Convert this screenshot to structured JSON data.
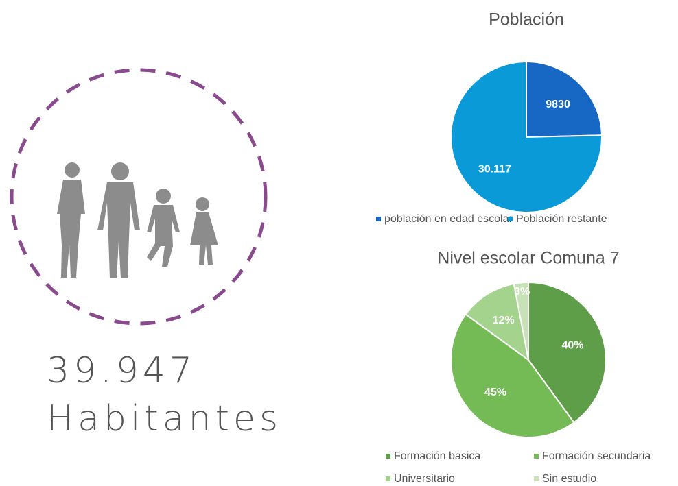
{
  "headline": {
    "number": "39.947",
    "label": "Habitantes"
  },
  "chart_data": [
    {
      "type": "pie",
      "title": "Población",
      "categories": [
        "población en edad escolar",
        "Población restante"
      ],
      "values": [
        9830,
        30117
      ],
      "value_labels": [
        "9830",
        "30.117"
      ],
      "colors": [
        "#1768c4",
        "#0a9ad8"
      ],
      "legend": "bottom"
    },
    {
      "type": "pie",
      "title": "Nivel escolar Comuna 7",
      "categories": [
        "Formación basica",
        "Formación secundaria",
        "Universitario",
        "Sin estudio"
      ],
      "values": [
        40,
        45,
        12,
        3
      ],
      "value_labels": [
        "40%",
        "45%",
        "12%",
        "3%"
      ],
      "colors": [
        "#5e9e48",
        "#74bb55",
        "#a3d38d",
        "#c6e2b6"
      ],
      "legend": "bottom"
    }
  ]
}
